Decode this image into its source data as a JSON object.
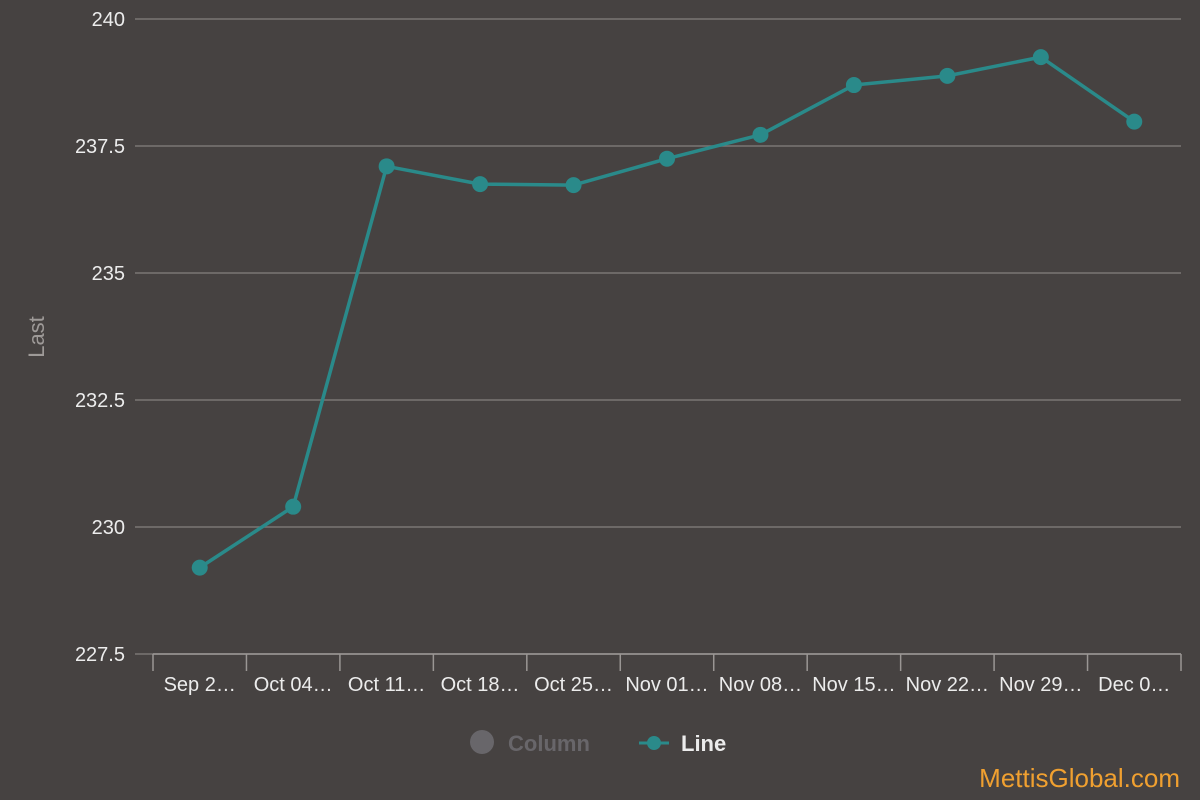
{
  "chart_data": {
    "type": "line",
    "title": "",
    "xlabel": "",
    "ylabel": "Last",
    "categories": [
      "Sep 2…",
      "Oct 04…",
      "Oct 11…",
      "Oct 18…",
      "Oct 25…",
      "Nov 01…",
      "Nov 08…",
      "Nov 15…",
      "Nov 22…",
      "Nov 29…",
      "Dec 0…"
    ],
    "series": [
      {
        "name": "Line",
        "color": "#2a8a8a",
        "values": [
          229.2,
          230.4,
          237.1,
          236.75,
          236.73,
          237.25,
          237.72,
          238.7,
          238.88,
          239.25,
          237.98
        ]
      }
    ],
    "ylim": [
      227.5,
      240
    ],
    "yticks": [
      "227.5",
      "230",
      "232.5",
      "235",
      "237.5",
      "240"
    ],
    "grid": true,
    "legend": {
      "placement": "bottom-center",
      "items": [
        {
          "label": "Column",
          "enabled": false,
          "color": "#68666a"
        },
        {
          "label": "Line",
          "enabled": true,
          "color": "#2a8a8a"
        }
      ]
    }
  },
  "watermark": "MettisGlobal.com"
}
